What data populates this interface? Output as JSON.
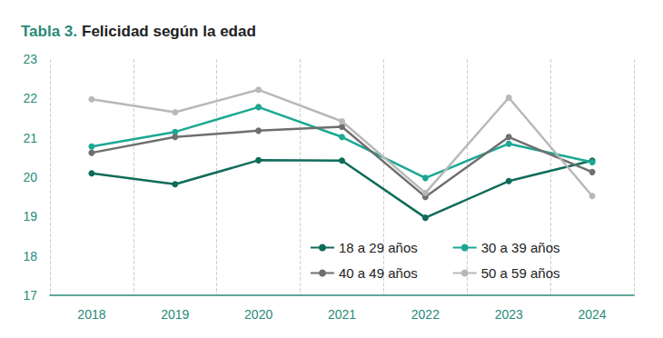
{
  "chart_data": {
    "type": "line",
    "title": "Tabla 3. Felicidad según la edad",
    "categories": [
      "2018",
      "2019",
      "2020",
      "2021",
      "2022",
      "2023",
      "2024"
    ],
    "series": [
      {
        "name": "18 a 29 años",
        "color": "#0f6b5a",
        "values": [
          20.1,
          19.82,
          20.43,
          20.42,
          18.97,
          19.9,
          20.42
        ]
      },
      {
        "name": "30 a 39 años",
        "color": "#1ba892",
        "values": [
          20.78,
          21.15,
          21.78,
          21.02,
          19.98,
          20.85,
          20.38
        ]
      },
      {
        "name": "40 a 49 años",
        "color": "#6f6f6f",
        "values": [
          20.62,
          21.02,
          21.18,
          21.28,
          19.5,
          21.02,
          20.13
        ]
      },
      {
        "name": "50 a 59 años",
        "color": "#b8b8b8",
        "values": [
          21.98,
          21.65,
          22.22,
          21.42,
          19.6,
          22.02,
          19.52
        ]
      }
    ],
    "ylim": [
      17,
      23
    ],
    "yticks": [
      17,
      18,
      19,
      20,
      21,
      22,
      23
    ],
    "grid": true,
    "legend": "lower right",
    "marker": "circle"
  }
}
